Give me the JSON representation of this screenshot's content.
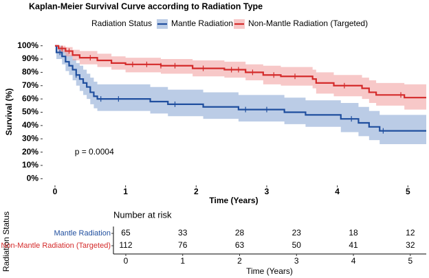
{
  "chart_data": {
    "type": "kaplan-meier",
    "title": "Kaplan-Meier Survival Curve according to Radiation Type",
    "legend_title": "Radiation Status",
    "legend": "top",
    "x_label": "Time (Years)",
    "y_label": "Survival (%)",
    "annotation": "p = 0.0004",
    "annotation_x": 0.28,
    "annotation_y": 20,
    "xlim": [
      -0.175,
      5.26
    ],
    "ylim": [
      -5,
      105
    ],
    "xticks": [
      0,
      1,
      2,
      3,
      4,
      5
    ],
    "yticks": [
      {
        "value": 0,
        "label": "0%"
      },
      {
        "value": 10,
        "label": "10%"
      },
      {
        "value": 20,
        "label": "20%"
      },
      {
        "value": 30,
        "label": "30%"
      },
      {
        "value": 40,
        "label": "40%"
      },
      {
        "value": 50,
        "label": "50%"
      },
      {
        "value": 60,
        "label": "60%"
      },
      {
        "value": 70,
        "label": "70%"
      },
      {
        "value": 80,
        "label": "80%"
      },
      {
        "value": 90,
        "label": "90%"
      },
      {
        "value": 100,
        "label": "100%"
      }
    ],
    "series": [
      {
        "name": "Mantle Radiation",
        "color": "#1f4e9e",
        "band_color": "#8eaad6",
        "x": [
          0,
          0.02,
          0.1,
          0.15,
          0.2,
          0.25,
          0.3,
          0.35,
          0.4,
          0.45,
          0.5,
          0.55,
          0.6,
          1.35,
          1.6,
          2.1,
          2.6,
          3.25,
          3.55,
          4.05,
          4.3,
          4.45,
          4.6,
          5.26
        ],
        "values": [
          100,
          95,
          92,
          88,
          85,
          82,
          78,
          75,
          72,
          69,
          65,
          62,
          60,
          58,
          56,
          54,
          52,
          50,
          48,
          45,
          42,
          39,
          36,
          36
        ],
        "lower": [
          100,
          90,
          86,
          81,
          78,
          74,
          70,
          66,
          63,
          60,
          56,
          53,
          51,
          49,
          47,
          45,
          43,
          41,
          39,
          35,
          32,
          29,
          26,
          26
        ],
        "upper": [
          100,
          100,
          98,
          95,
          93,
          90,
          87,
          85,
          82,
          79,
          76,
          73,
          71,
          69,
          67,
          65,
          63,
          61,
          59,
          57,
          54,
          51,
          48,
          48
        ],
        "censor_x": [
          0.07,
          0.3,
          0.65,
          0.9,
          1.7,
          2.7,
          3.0,
          4.2,
          4.65
        ]
      },
      {
        "name": "Non-Mantle Radiation (Targeted)",
        "color": "#d42a2a",
        "band_color": "#f2a3a3",
        "x": [
          0,
          0.05,
          0.15,
          0.25,
          0.35,
          0.6,
          0.8,
          1.0,
          1.5,
          1.95,
          2.4,
          2.7,
          2.95,
          3.2,
          3.65,
          3.7,
          3.95,
          4.35,
          4.45,
          4.55,
          4.95,
          5.26
        ],
        "values": [
          100,
          98,
          96,
          93,
          91,
          89,
          87,
          86,
          85,
          83,
          82,
          80,
          78,
          77,
          75,
          72,
          70,
          68,
          65,
          63,
          61,
          61
        ],
        "lower": [
          100,
          95,
          92,
          89,
          86,
          84,
          82,
          80,
          79,
          77,
          76,
          74,
          71,
          70,
          68,
          64,
          62,
          60,
          57,
          55,
          52,
          52
        ],
        "upper": [
          100,
          100,
          99,
          97,
          96,
          94,
          92,
          91,
          90,
          89,
          88,
          86,
          85,
          84,
          82,
          80,
          78,
          76,
          74,
          72,
          71,
          71
        ],
        "censor_x": [
          0.1,
          0.2,
          0.5,
          1.1,
          1.3,
          1.5,
          1.7,
          2.1,
          2.5,
          2.6,
          2.8,
          3.1,
          3.4,
          4.1,
          4.9
        ]
      }
    ],
    "risk_table": {
      "title": "Number at risk",
      "y_label": "Radiation Status",
      "x_label": "Time (Years)",
      "xlim": [
        -0.217,
        5.28
      ],
      "times": [
        0,
        1,
        2,
        3,
        4,
        5
      ],
      "rows": [
        {
          "name": "Mantle Radiation",
          "color": "#1f4e9e",
          "counts": [
            65,
            33,
            28,
            23,
            18,
            12
          ]
        },
        {
          "name": "Non-Mantle Radiation (Targeted)",
          "color": "#d42a2a",
          "counts": [
            112,
            76,
            63,
            50,
            41,
            32
          ]
        }
      ]
    }
  }
}
